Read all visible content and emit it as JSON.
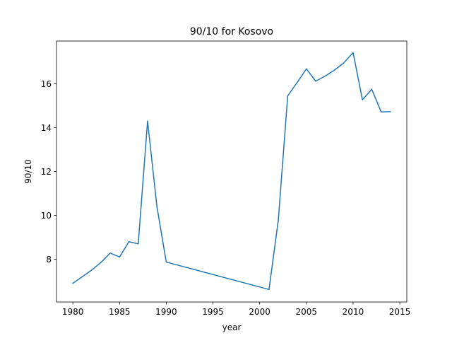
{
  "chart_data": {
    "type": "line",
    "title": "90/10 for Kosovo",
    "xlabel": "year",
    "ylabel": "90/10",
    "xlim": [
      1978.25,
      2015.75
    ],
    "ylim": [
      6.05,
      17.95
    ],
    "xticks": [
      1980,
      1985,
      1990,
      1995,
      2000,
      2005,
      2010,
      2015
    ],
    "yticks": [
      8,
      10,
      12,
      14,
      16
    ],
    "grid": false,
    "series": [
      {
        "color": "#1f77b4",
        "x": [
          1980,
          1981,
          1982,
          1983,
          1984,
          1985,
          1986,
          1987,
          1988,
          1989,
          1990,
          2001,
          2002,
          2003,
          2004,
          2005,
          2006,
          2007,
          2008,
          2009,
          2010,
          2011,
          2012,
          2013,
          2014
        ],
        "y": [
          6.9,
          7.2,
          7.5,
          7.85,
          8.28,
          8.1,
          8.8,
          8.7,
          14.3,
          10.4,
          7.87,
          6.62,
          9.8,
          15.45,
          16.05,
          16.68,
          16.12,
          16.35,
          16.62,
          16.95,
          17.42,
          15.27,
          15.75,
          14.72,
          14.73
        ]
      }
    ]
  }
}
